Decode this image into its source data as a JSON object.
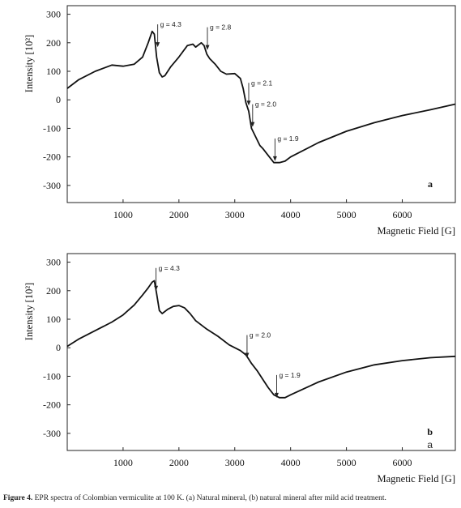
{
  "caption": {
    "label": "Figure 4.",
    "text": "EPR spectra of Colombian vermiculite at 100 K. (a) Natural mineral, (b) natural mineral after mild acid treatment."
  },
  "chart_data": [
    {
      "type": "line",
      "panel_label": "a",
      "xlabel": "Magnetic Field [G]",
      "ylabel": "Intensity [10²]",
      "xlim": [
        0,
        6950
      ],
      "ylim": [
        -360,
        330
      ],
      "xticks": [
        1000,
        2000,
        3000,
        4000,
        5000,
        6000
      ],
      "yticks": [
        300,
        200,
        100,
        0,
        -100,
        -200,
        -300
      ],
      "grid": false,
      "x": [
        0,
        200,
        500,
        800,
        1000,
        1200,
        1350,
        1450,
        1520,
        1560,
        1600,
        1650,
        1700,
        1750,
        1850,
        2000,
        2150,
        2250,
        2300,
        2400,
        2450,
        2500,
        2550,
        2650,
        2750,
        2850,
        3000,
        3100,
        3150,
        3200,
        3250,
        3300,
        3350,
        3400,
        3450,
        3500,
        3600,
        3700,
        3800,
        3900,
        4000,
        4500,
        5000,
        5500,
        6000,
        6500,
        6950
      ],
      "y": [
        40,
        70,
        100,
        122,
        118,
        125,
        150,
        200,
        240,
        230,
        150,
        95,
        80,
        85,
        115,
        150,
        190,
        195,
        185,
        200,
        190,
        160,
        145,
        125,
        100,
        90,
        92,
        75,
        40,
        -10,
        -40,
        -100,
        -120,
        -140,
        -160,
        -170,
        -195,
        -220,
        -220,
        -215,
        -200,
        -150,
        -110,
        -80,
        -55,
        -35,
        -15
      ],
      "annotations": [
        {
          "text": "g = 4.3",
          "x": 1620,
          "y": 185
        },
        {
          "text": "g = 2.8",
          "x": 2510,
          "y": 175
        },
        {
          "text": "g = 2.1",
          "x": 3250,
          "y": -20
        },
        {
          "text": "g = 2.0",
          "x": 3320,
          "y": -95
        },
        {
          "text": "g = 1.9",
          "x": 3720,
          "y": -215
        }
      ]
    },
    {
      "type": "line",
      "panel_label": "b",
      "extra_label": "a",
      "xlabel": "Magnetic Field [G]",
      "ylabel": "Intensity [10²]",
      "xlim": [
        0,
        6950
      ],
      "ylim": [
        -360,
        330
      ],
      "xticks": [
        1000,
        2000,
        3000,
        4000,
        5000,
        6000
      ],
      "yticks": [
        300,
        200,
        100,
        0,
        -100,
        -200,
        -300
      ],
      "grid": false,
      "x": [
        0,
        200,
        500,
        800,
        1000,
        1200,
        1350,
        1450,
        1520,
        1560,
        1600,
        1650,
        1700,
        1800,
        1900,
        2000,
        2100,
        2200,
        2300,
        2500,
        2700,
        2900,
        3100,
        3200,
        3250,
        3300,
        3400,
        3500,
        3600,
        3700,
        3800,
        3900,
        4000,
        4500,
        5000,
        5500,
        6000,
        6500,
        6950
      ],
      "y": [
        5,
        30,
        60,
        90,
        115,
        150,
        185,
        210,
        230,
        235,
        190,
        130,
        120,
        135,
        145,
        148,
        140,
        120,
        95,
        65,
        40,
        10,
        -10,
        -25,
        -40,
        -55,
        -80,
        -110,
        -140,
        -165,
        -175,
        -175,
        -165,
        -120,
        -85,
        -60,
        -45,
        -35,
        -30
      ],
      "annotations": [
        {
          "text": "g = 4.3",
          "x": 1590,
          "y": 200
        },
        {
          "text": "g = 2.0",
          "x": 3220,
          "y": -35
        },
        {
          "text": "g = 1.9",
          "x": 3750,
          "y": -175
        }
      ]
    }
  ]
}
